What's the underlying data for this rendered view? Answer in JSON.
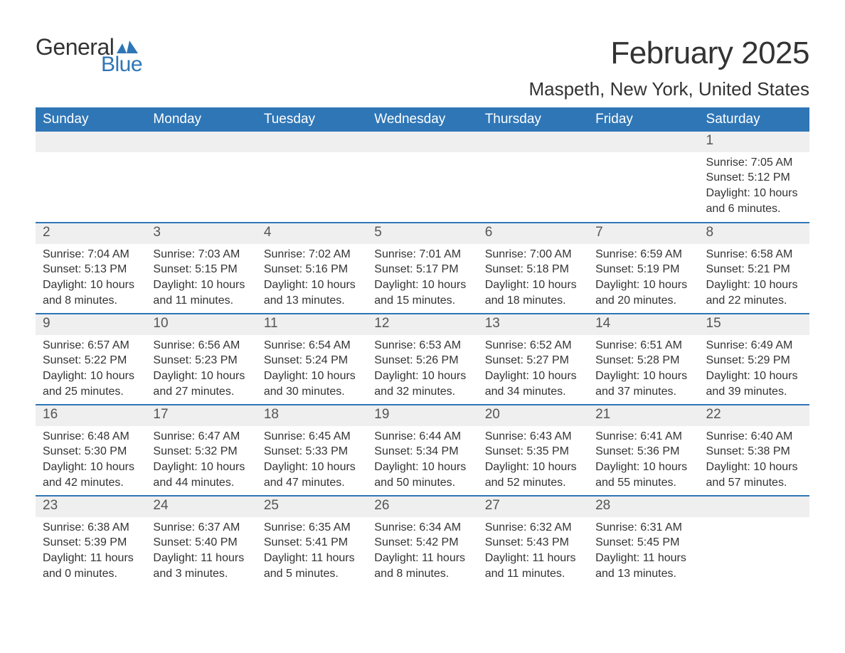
{
  "logo": {
    "word1": "General",
    "word2": "Blue",
    "wing_color": "#2f76b6"
  },
  "title": "February 2025",
  "subtitle": "Maspeth, New York, United States",
  "colors": {
    "header_bg": "#2f76b6",
    "header_text": "#ffffff",
    "daynum_bg": "#efefef",
    "daynum_text": "#555555",
    "body_text": "#333333",
    "rule": "#2f76b6",
    "page_bg": "#ffffff"
  },
  "fonts": {
    "title_pt": 44,
    "subtitle_pt": 26,
    "dayheader_pt": 19,
    "daynum_pt": 19,
    "body_pt": 16
  },
  "day_headers": [
    "Sunday",
    "Monday",
    "Tuesday",
    "Wednesday",
    "Thursday",
    "Friday",
    "Saturday"
  ],
  "weeks": [
    [
      {
        "n": "",
        "sunrise": "",
        "sunset": "",
        "daylight": ""
      },
      {
        "n": "",
        "sunrise": "",
        "sunset": "",
        "daylight": ""
      },
      {
        "n": "",
        "sunrise": "",
        "sunset": "",
        "daylight": ""
      },
      {
        "n": "",
        "sunrise": "",
        "sunset": "",
        "daylight": ""
      },
      {
        "n": "",
        "sunrise": "",
        "sunset": "",
        "daylight": ""
      },
      {
        "n": "",
        "sunrise": "",
        "sunset": "",
        "daylight": ""
      },
      {
        "n": "1",
        "sunrise": "Sunrise: 7:05 AM",
        "sunset": "Sunset: 5:12 PM",
        "daylight": "Daylight: 10 hours and 6 minutes."
      }
    ],
    [
      {
        "n": "2",
        "sunrise": "Sunrise: 7:04 AM",
        "sunset": "Sunset: 5:13 PM",
        "daylight": "Daylight: 10 hours and 8 minutes."
      },
      {
        "n": "3",
        "sunrise": "Sunrise: 7:03 AM",
        "sunset": "Sunset: 5:15 PM",
        "daylight": "Daylight: 10 hours and 11 minutes."
      },
      {
        "n": "4",
        "sunrise": "Sunrise: 7:02 AM",
        "sunset": "Sunset: 5:16 PM",
        "daylight": "Daylight: 10 hours and 13 minutes."
      },
      {
        "n": "5",
        "sunrise": "Sunrise: 7:01 AM",
        "sunset": "Sunset: 5:17 PM",
        "daylight": "Daylight: 10 hours and 15 minutes."
      },
      {
        "n": "6",
        "sunrise": "Sunrise: 7:00 AM",
        "sunset": "Sunset: 5:18 PM",
        "daylight": "Daylight: 10 hours and 18 minutes."
      },
      {
        "n": "7",
        "sunrise": "Sunrise: 6:59 AM",
        "sunset": "Sunset: 5:19 PM",
        "daylight": "Daylight: 10 hours and 20 minutes."
      },
      {
        "n": "8",
        "sunrise": "Sunrise: 6:58 AM",
        "sunset": "Sunset: 5:21 PM",
        "daylight": "Daylight: 10 hours and 22 minutes."
      }
    ],
    [
      {
        "n": "9",
        "sunrise": "Sunrise: 6:57 AM",
        "sunset": "Sunset: 5:22 PM",
        "daylight": "Daylight: 10 hours and 25 minutes."
      },
      {
        "n": "10",
        "sunrise": "Sunrise: 6:56 AM",
        "sunset": "Sunset: 5:23 PM",
        "daylight": "Daylight: 10 hours and 27 minutes."
      },
      {
        "n": "11",
        "sunrise": "Sunrise: 6:54 AM",
        "sunset": "Sunset: 5:24 PM",
        "daylight": "Daylight: 10 hours and 30 minutes."
      },
      {
        "n": "12",
        "sunrise": "Sunrise: 6:53 AM",
        "sunset": "Sunset: 5:26 PM",
        "daylight": "Daylight: 10 hours and 32 minutes."
      },
      {
        "n": "13",
        "sunrise": "Sunrise: 6:52 AM",
        "sunset": "Sunset: 5:27 PM",
        "daylight": "Daylight: 10 hours and 34 minutes."
      },
      {
        "n": "14",
        "sunrise": "Sunrise: 6:51 AM",
        "sunset": "Sunset: 5:28 PM",
        "daylight": "Daylight: 10 hours and 37 minutes."
      },
      {
        "n": "15",
        "sunrise": "Sunrise: 6:49 AM",
        "sunset": "Sunset: 5:29 PM",
        "daylight": "Daylight: 10 hours and 39 minutes."
      }
    ],
    [
      {
        "n": "16",
        "sunrise": "Sunrise: 6:48 AM",
        "sunset": "Sunset: 5:30 PM",
        "daylight": "Daylight: 10 hours and 42 minutes."
      },
      {
        "n": "17",
        "sunrise": "Sunrise: 6:47 AM",
        "sunset": "Sunset: 5:32 PM",
        "daylight": "Daylight: 10 hours and 44 minutes."
      },
      {
        "n": "18",
        "sunrise": "Sunrise: 6:45 AM",
        "sunset": "Sunset: 5:33 PM",
        "daylight": "Daylight: 10 hours and 47 minutes."
      },
      {
        "n": "19",
        "sunrise": "Sunrise: 6:44 AM",
        "sunset": "Sunset: 5:34 PM",
        "daylight": "Daylight: 10 hours and 50 minutes."
      },
      {
        "n": "20",
        "sunrise": "Sunrise: 6:43 AM",
        "sunset": "Sunset: 5:35 PM",
        "daylight": "Daylight: 10 hours and 52 minutes."
      },
      {
        "n": "21",
        "sunrise": "Sunrise: 6:41 AM",
        "sunset": "Sunset: 5:36 PM",
        "daylight": "Daylight: 10 hours and 55 minutes."
      },
      {
        "n": "22",
        "sunrise": "Sunrise: 6:40 AM",
        "sunset": "Sunset: 5:38 PM",
        "daylight": "Daylight: 10 hours and 57 minutes."
      }
    ],
    [
      {
        "n": "23",
        "sunrise": "Sunrise: 6:38 AM",
        "sunset": "Sunset: 5:39 PM",
        "daylight": "Daylight: 11 hours and 0 minutes."
      },
      {
        "n": "24",
        "sunrise": "Sunrise: 6:37 AM",
        "sunset": "Sunset: 5:40 PM",
        "daylight": "Daylight: 11 hours and 3 minutes."
      },
      {
        "n": "25",
        "sunrise": "Sunrise: 6:35 AM",
        "sunset": "Sunset: 5:41 PM",
        "daylight": "Daylight: 11 hours and 5 minutes."
      },
      {
        "n": "26",
        "sunrise": "Sunrise: 6:34 AM",
        "sunset": "Sunset: 5:42 PM",
        "daylight": "Daylight: 11 hours and 8 minutes."
      },
      {
        "n": "27",
        "sunrise": "Sunrise: 6:32 AM",
        "sunset": "Sunset: 5:43 PM",
        "daylight": "Daylight: 11 hours and 11 minutes."
      },
      {
        "n": "28",
        "sunrise": "Sunrise: 6:31 AM",
        "sunset": "Sunset: 5:45 PM",
        "daylight": "Daylight: 11 hours and 13 minutes."
      },
      {
        "n": "",
        "sunrise": "",
        "sunset": "",
        "daylight": ""
      }
    ]
  ]
}
